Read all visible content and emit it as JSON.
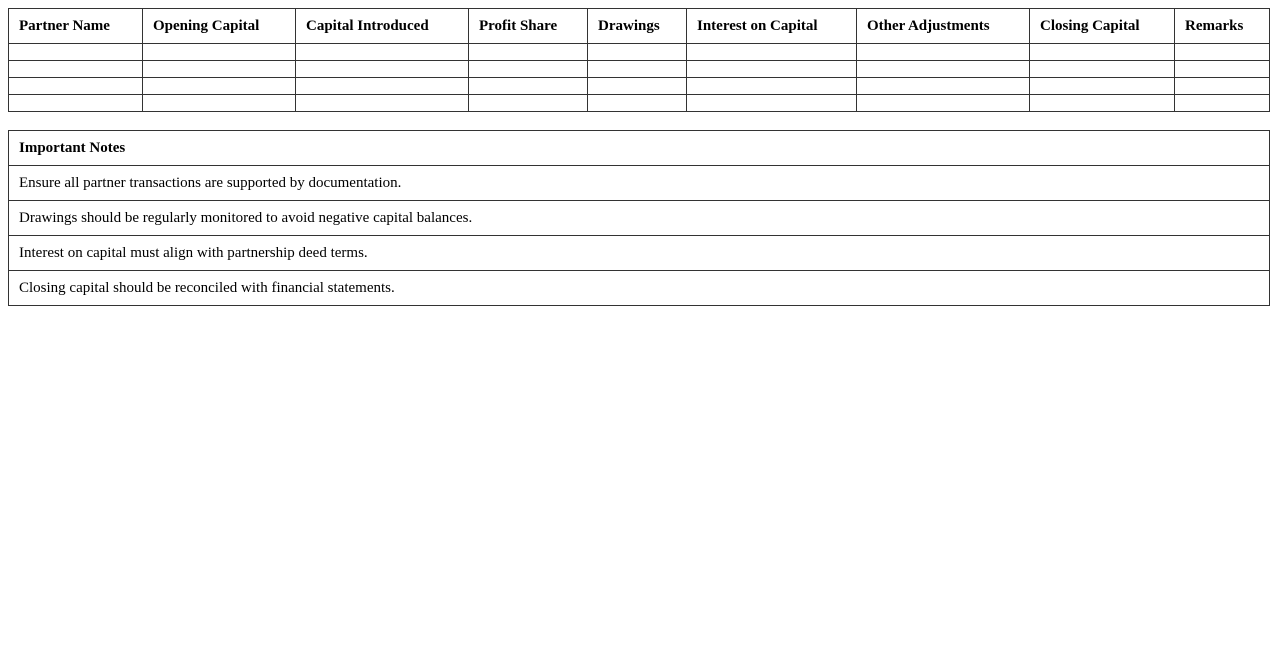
{
  "capital_table": {
    "headers": [
      "Partner Name",
      "Opening Capital",
      "Capital Introduced",
      "Profit Share",
      "Drawings",
      "Interest on Capital",
      "Other Adjustments",
      "Closing Capital",
      "Remarks"
    ],
    "rows": [
      [
        "",
        "",
        "",
        "",
        "",
        "",
        "",
        "",
        ""
      ],
      [
        "",
        "",
        "",
        "",
        "",
        "",
        "",
        "",
        ""
      ],
      [
        "",
        "",
        "",
        "",
        "",
        "",
        "",
        "",
        ""
      ],
      [
        "",
        "",
        "",
        "",
        "",
        "",
        "",
        "",
        ""
      ]
    ]
  },
  "notes": {
    "title": "Important Notes",
    "items": [
      "Ensure all partner transactions are supported by documentation.",
      "Drawings should be regularly monitored to avoid negative capital balances.",
      "Interest on capital must align with partnership deed terms.",
      "Closing capital should be reconciled with financial statements."
    ]
  }
}
